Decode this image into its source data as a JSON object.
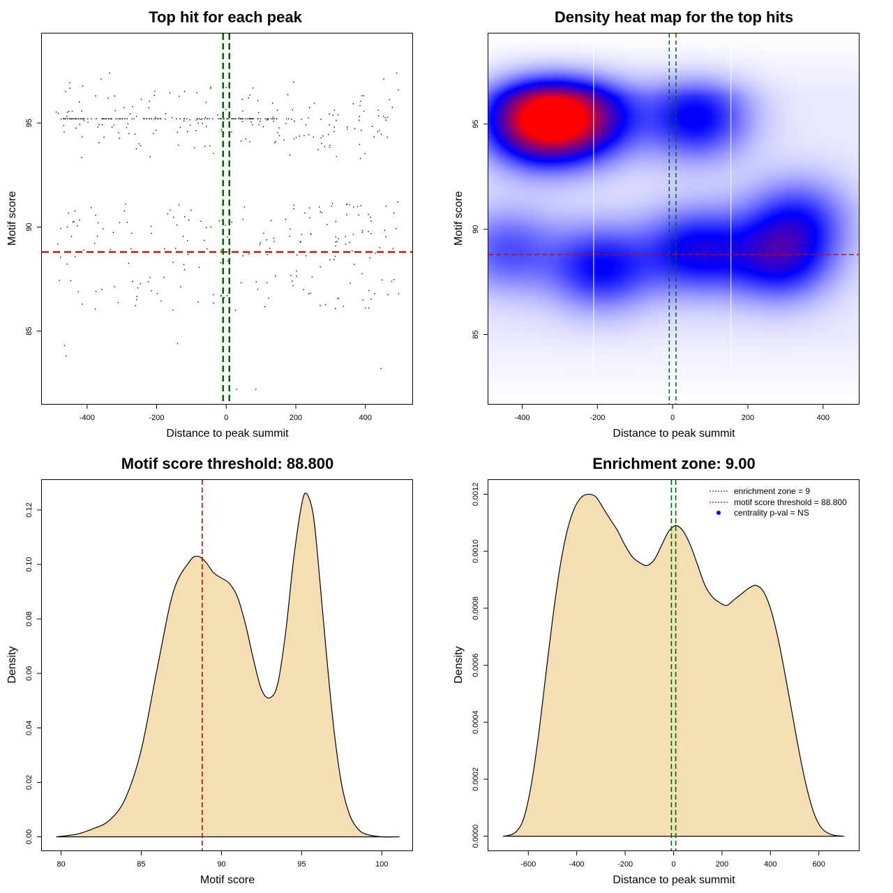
{
  "colors": {
    "threshold_line": "#cc0000",
    "zone_line": "#006400",
    "density_fill": "#f5deb3",
    "heat_low": "#ffffff",
    "heat_mid": "#0000ff",
    "heat_high": "#ff0000"
  },
  "chart_data": [
    {
      "type": "scatter",
      "title": "Top hit for each peak",
      "xlabel": "Distance to peak summit",
      "ylabel": "Motif score",
      "xlim": [
        -530,
        535
      ],
      "ylim": [
        81.5,
        99.3
      ],
      "x_ticks": [
        -400,
        -200,
        0,
        200,
        400
      ],
      "x_tick_labels": [
        "-400",
        "-200",
        "0",
        "200",
        "400"
      ],
      "y_ticks": [
        85,
        90,
        95
      ],
      "y_tick_labels": [
        "85",
        "90",
        "95"
      ],
      "threshold_y": 88.8,
      "zone_x": [
        -9,
        9
      ],
      "point_seed": 7,
      "n_points": 520,
      "points_sample": [
        {
          "x": -465,
          "y": 84.3
        },
        {
          "x": -460,
          "y": 83.8
        },
        {
          "x": -335,
          "y": 97.4
        },
        {
          "x": 490,
          "y": 97.4
        },
        {
          "x": 445,
          "y": 83.2
        },
        {
          "x": 85,
          "y": 82.2
        },
        {
          "x": 30,
          "y": 82.2
        },
        {
          "x": -140,
          "y": 84.4
        }
      ]
    },
    {
      "type": "heatmap",
      "title": "Density heat map for the top hits",
      "xlabel": "Distance to peak summit",
      "ylabel": "Motif score",
      "xlim": [
        -490,
        495
      ],
      "ylim": [
        81.7,
        99.3
      ],
      "x_ticks": [
        -400,
        -200,
        0,
        200,
        400
      ],
      "x_tick_labels": [
        "-400",
        "-200",
        "0",
        "200",
        "400"
      ],
      "y_ticks": [
        85,
        90,
        95
      ],
      "y_tick_labels": [
        "85",
        "90",
        "95"
      ],
      "threshold_y": 88.8,
      "zone_x": [
        -9,
        9
      ],
      "white_lines_x": [
        -210,
        155
      ],
      "hotspots": [
        {
          "x": -355,
          "y": 95.2,
          "w": 1.0
        },
        {
          "x": -230,
          "y": 95.3,
          "w": 0.55
        },
        {
          "x": 60,
          "y": 95.3,
          "w": 0.45
        },
        {
          "x": -190,
          "y": 88.2,
          "w": 0.42
        },
        {
          "x": 60,
          "y": 89.0,
          "w": 0.45
        },
        {
          "x": 280,
          "y": 88.6,
          "w": 0.45
        },
        {
          "x": 330,
          "y": 90.5,
          "w": 0.32
        },
        {
          "x": -440,
          "y": 89.0,
          "w": 0.28
        }
      ]
    },
    {
      "type": "area",
      "title": "Motif score threshold: 88.800",
      "xlabel": "Motif score",
      "ylabel": "Density",
      "xlim": [
        78.8,
        101.9
      ],
      "ylim": [
        -0.005,
        0.131
      ],
      "x_ticks": [
        80,
        85,
        90,
        95,
        100
      ],
      "x_tick_labels": [
        "80",
        "85",
        "90",
        "95",
        "100"
      ],
      "y_ticks": [
        0.0,
        0.02,
        0.04,
        0.06,
        0.08,
        0.1,
        0.12
      ],
      "y_tick_labels": [
        "0.00",
        "0.02",
        "0.04",
        "0.06",
        "0.08",
        "0.10",
        "0.12"
      ],
      "threshold_x": 88.8,
      "curve": [
        {
          "x": 79.7,
          "y": 0.0
        },
        {
          "x": 81.0,
          "y": 0.001
        },
        {
          "x": 82.0,
          "y": 0.003
        },
        {
          "x": 83.0,
          "y": 0.006
        },
        {
          "x": 84.0,
          "y": 0.014
        },
        {
          "x": 85.0,
          "y": 0.032
        },
        {
          "x": 86.0,
          "y": 0.062
        },
        {
          "x": 87.0,
          "y": 0.09
        },
        {
          "x": 88.0,
          "y": 0.101
        },
        {
          "x": 88.5,
          "y": 0.103
        },
        {
          "x": 89.0,
          "y": 0.101
        },
        {
          "x": 89.5,
          "y": 0.097
        },
        {
          "x": 90.0,
          "y": 0.095
        },
        {
          "x": 90.5,
          "y": 0.093
        },
        {
          "x": 91.0,
          "y": 0.088
        },
        {
          "x": 91.5,
          "y": 0.078
        },
        {
          "x": 92.0,
          "y": 0.065
        },
        {
          "x": 92.5,
          "y": 0.054
        },
        {
          "x": 93.0,
          "y": 0.051
        },
        {
          "x": 93.5,
          "y": 0.056
        },
        {
          "x": 94.0,
          "y": 0.075
        },
        {
          "x": 94.5,
          "y": 0.102
        },
        {
          "x": 95.0,
          "y": 0.122
        },
        {
          "x": 95.3,
          "y": 0.126
        },
        {
          "x": 95.7,
          "y": 0.119
        },
        {
          "x": 96.0,
          "y": 0.103
        },
        {
          "x": 96.5,
          "y": 0.07
        },
        {
          "x": 97.0,
          "y": 0.04
        },
        {
          "x": 97.5,
          "y": 0.019
        },
        {
          "x": 98.0,
          "y": 0.008
        },
        {
          "x": 98.5,
          "y": 0.003
        },
        {
          "x": 99.0,
          "y": 0.001
        },
        {
          "x": 100.0,
          "y": 0.0
        },
        {
          "x": 101.1,
          "y": 0.0
        }
      ]
    },
    {
      "type": "area",
      "title": "Enrichment zone: 9.00",
      "xlabel": "Distance to peak summit",
      "ylabel": "Density",
      "xlim": [
        -765,
        765
      ],
      "ylim": [
        -5e-05,
        0.00125
      ],
      "x_ticks": [
        -600,
        -400,
        -200,
        0,
        200,
        400,
        600
      ],
      "x_tick_labels": [
        "-600",
        "-400",
        "-200",
        "0",
        "200",
        "400",
        "600"
      ],
      "y_ticks": [
        0.0,
        0.0002,
        0.0004,
        0.0006,
        0.0008,
        0.001,
        0.0012
      ],
      "y_tick_labels": [
        "0.0000",
        "0.0002",
        "0.0004",
        "0.0006",
        "0.0008",
        "0.0010",
        "0.0012"
      ],
      "zone_x": [
        -9,
        9
      ],
      "curve": [
        {
          "x": -705,
          "y": 0.0
        },
        {
          "x": -680,
          "y": 3e-06
        },
        {
          "x": -650,
          "y": 1.6e-05
        },
        {
          "x": -620,
          "y": 6e-05
        },
        {
          "x": -590,
          "y": 0.00017
        },
        {
          "x": -560,
          "y": 0.00034
        },
        {
          "x": -530,
          "y": 0.00055
        },
        {
          "x": -500,
          "y": 0.00076
        },
        {
          "x": -470,
          "y": 0.00094
        },
        {
          "x": -440,
          "y": 0.00107
        },
        {
          "x": -410,
          "y": 0.00115
        },
        {
          "x": -380,
          "y": 0.00119
        },
        {
          "x": -350,
          "y": 0.0012
        },
        {
          "x": -320,
          "y": 0.00119
        },
        {
          "x": -290,
          "y": 0.00115
        },
        {
          "x": -260,
          "y": 0.00111
        },
        {
          "x": -230,
          "y": 0.00107
        },
        {
          "x": -200,
          "y": 0.00102
        },
        {
          "x": -170,
          "y": 0.00098
        },
        {
          "x": -140,
          "y": 0.00096
        },
        {
          "x": -110,
          "y": 0.00095
        },
        {
          "x": -80,
          "y": 0.00097
        },
        {
          "x": -50,
          "y": 0.00102
        },
        {
          "x": -20,
          "y": 0.00107
        },
        {
          "x": 10,
          "y": 0.00109
        },
        {
          "x": 40,
          "y": 0.00107
        },
        {
          "x": 70,
          "y": 0.00102
        },
        {
          "x": 100,
          "y": 0.00095
        },
        {
          "x": 130,
          "y": 0.00088
        },
        {
          "x": 160,
          "y": 0.00084
        },
        {
          "x": 190,
          "y": 0.00082
        },
        {
          "x": 220,
          "y": 0.00081
        },
        {
          "x": 250,
          "y": 0.00083
        },
        {
          "x": 280,
          "y": 0.00085
        },
        {
          "x": 310,
          "y": 0.00087
        },
        {
          "x": 340,
          "y": 0.00088
        },
        {
          "x": 370,
          "y": 0.00086
        },
        {
          "x": 400,
          "y": 0.0008
        },
        {
          "x": 430,
          "y": 0.0007
        },
        {
          "x": 460,
          "y": 0.00057
        },
        {
          "x": 490,
          "y": 0.00043
        },
        {
          "x": 520,
          "y": 0.00029
        },
        {
          "x": 550,
          "y": 0.00017
        },
        {
          "x": 580,
          "y": 8e-05
        },
        {
          "x": 610,
          "y": 3e-05
        },
        {
          "x": 640,
          "y": 1e-05
        },
        {
          "x": 670,
          "y": 2e-06
        },
        {
          "x": 705,
          "y": 0.0
        }
      ],
      "legend": [
        {
          "label": "enrichment zone = 9",
          "style": "dotted",
          "color": "#006400"
        },
        {
          "label": "motif score threshold = 88.800",
          "style": "dotted",
          "color": "#cc0000"
        },
        {
          "label": "centrality p-val = NS",
          "style": "point",
          "color": "#0000ff"
        }
      ],
      "legend_position": "top-right"
    }
  ]
}
